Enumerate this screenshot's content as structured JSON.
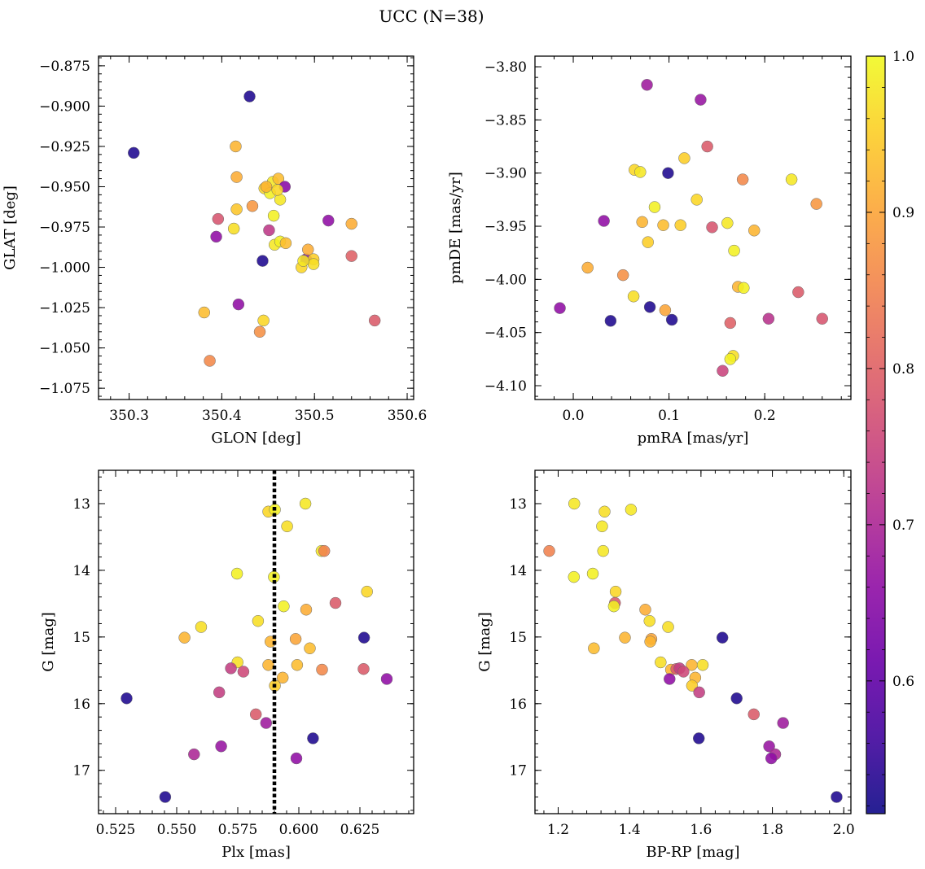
{
  "figure": {
    "title": "UCC (N=38)"
  },
  "colormap": {
    "name": "plasma",
    "range": [
      0.515,
      1.0
    ],
    "ticks": [
      0.6,
      0.7,
      0.8,
      0.9,
      1.0
    ],
    "tick_labels": [
      "0.6",
      "0.7",
      "0.8",
      "0.9",
      "1.0"
    ]
  },
  "dashed_line": {
    "value": 0.59,
    "color": "#000000",
    "style": "dotted"
  },
  "chart_data": [
    {
      "type": "scatter",
      "id": "glon-glat",
      "xlabel": "GLON [deg]",
      "ylabel": "GLAT [deg]",
      "xlim": [
        350.267,
        350.607
      ],
      "ylim": [
        -1.082,
        -0.869
      ],
      "xticks": [
        350.3,
        350.4,
        350.5,
        350.6
      ],
      "xtick_labels": [
        "350.3",
        "350.4",
        "350.5",
        "350.6"
      ],
      "yticks": [
        -0.875,
        -0.9,
        -0.925,
        -0.95,
        -0.975,
        -1.0,
        -1.025,
        -1.05,
        -1.075
      ],
      "ytick_labels": [
        "−0.875",
        "−0.900",
        "−0.925",
        "−0.950",
        "−0.975",
        "−1.000",
        "−1.025",
        "−1.050",
        "−1.075"
      ],
      "invert_y": false,
      "grid": false,
      "points": [
        {
          "x": 350.305,
          "y": -0.929,
          "c": 0.53
        },
        {
          "x": 350.43,
          "y": -0.894,
          "c": 0.53
        },
        {
          "x": 350.444,
          "y": -0.996,
          "c": 0.53
        },
        {
          "x": 350.491,
          "y": -0.995,
          "c": 0.64
        },
        {
          "x": 350.415,
          "y": -0.925,
          "c": 0.92
        },
        {
          "x": 350.416,
          "y": -0.944,
          "c": 0.91
        },
        {
          "x": 350.416,
          "y": -0.964,
          "c": 0.94
        },
        {
          "x": 350.413,
          "y": -0.976,
          "c": 0.97
        },
        {
          "x": 350.396,
          "y": -0.97,
          "c": 0.78
        },
        {
          "x": 350.394,
          "y": -0.981,
          "c": 0.66
        },
        {
          "x": 350.433,
          "y": -0.962,
          "c": 0.88
        },
        {
          "x": 350.446,
          "y": -0.951,
          "c": 0.96
        },
        {
          "x": 350.452,
          "y": -0.954,
          "c": 0.99
        },
        {
          "x": 350.455,
          "y": -0.947,
          "c": 0.98
        },
        {
          "x": 350.461,
          "y": -0.945,
          "c": 0.93
        },
        {
          "x": 350.463,
          "y": -0.958,
          "c": 0.98
        },
        {
          "x": 350.468,
          "y": -0.95,
          "c": 0.65
        },
        {
          "x": 350.456,
          "y": -0.968,
          "c": 0.99
        },
        {
          "x": 350.451,
          "y": -0.977,
          "c": 0.73
        },
        {
          "x": 350.457,
          "y": -0.986,
          "c": 0.98
        },
        {
          "x": 350.463,
          "y": -0.984,
          "c": 0.99
        },
        {
          "x": 350.469,
          "y": -0.985,
          "c": 0.93
        },
        {
          "x": 350.493,
          "y": -0.989,
          "c": 0.91
        },
        {
          "x": 350.499,
          "y": -0.995,
          "c": 0.95
        },
        {
          "x": 350.499,
          "y": -0.998,
          "c": 0.97
        },
        {
          "x": 350.486,
          "y": -1.0,
          "c": 0.96
        },
        {
          "x": 350.515,
          "y": -0.971,
          "c": 0.66
        },
        {
          "x": 350.54,
          "y": -0.973,
          "c": 0.91
        },
        {
          "x": 350.54,
          "y": -0.993,
          "c": 0.8
        },
        {
          "x": 350.565,
          "y": -1.033,
          "c": 0.79
        },
        {
          "x": 350.418,
          "y": -1.023,
          "c": 0.66
        },
        {
          "x": 350.381,
          "y": -1.028,
          "c": 0.93
        },
        {
          "x": 350.445,
          "y": -1.033,
          "c": 0.96
        },
        {
          "x": 350.441,
          "y": -1.04,
          "c": 0.87
        },
        {
          "x": 350.387,
          "y": -1.058,
          "c": 0.86
        },
        {
          "x": 350.46,
          "y": -0.952,
          "c": 0.96
        },
        {
          "x": 350.448,
          "y": -0.95,
          "c": 0.92
        },
        {
          "x": 350.488,
          "y": -0.996,
          "c": 0.98
        }
      ]
    },
    {
      "type": "scatter",
      "id": "pmra-pmde",
      "xlabel": "pmRA [mas/yr]",
      "ylabel": "pmDE [mas/yr]",
      "xlim": [
        -0.04,
        0.29
      ],
      "ylim": [
        -4.113,
        -3.79
      ],
      "xticks": [
        0.0,
        0.1,
        0.2
      ],
      "xtick_labels": [
        "0.0",
        "0.1",
        "0.2"
      ],
      "yticks": [
        -3.8,
        -3.85,
        -3.9,
        -3.95,
        -4.0,
        -4.05,
        -4.1
      ],
      "ytick_labels": [
        "−3.80",
        "−3.85",
        "−3.90",
        "−3.95",
        "−4.00",
        "−4.05",
        "−4.10"
      ],
      "invert_y": false,
      "grid": false,
      "points": [
        {
          "x": 0.077,
          "y": -3.817,
          "c": 0.68
        },
        {
          "x": 0.133,
          "y": -3.831,
          "c": 0.67
        },
        {
          "x": 0.14,
          "y": -3.875,
          "c": 0.79
        },
        {
          "x": 0.116,
          "y": -3.886,
          "c": 0.95
        },
        {
          "x": 0.064,
          "y": -3.897,
          "c": 0.96
        },
        {
          "x": 0.07,
          "y": -3.899,
          "c": 0.98
        },
        {
          "x": 0.099,
          "y": -3.9,
          "c": 0.53
        },
        {
          "x": 0.177,
          "y": -3.906,
          "c": 0.86
        },
        {
          "x": 0.228,
          "y": -3.906,
          "c": 0.98
        },
        {
          "x": 0.129,
          "y": -3.925,
          "c": 0.96
        },
        {
          "x": 0.254,
          "y": -3.929,
          "c": 0.88
        },
        {
          "x": 0.085,
          "y": -3.932,
          "c": 0.99
        },
        {
          "x": 0.032,
          "y": -3.945,
          "c": 0.66
        },
        {
          "x": 0.072,
          "y": -3.946,
          "c": 0.92
        },
        {
          "x": 0.094,
          "y": -3.949,
          "c": 0.93
        },
        {
          "x": 0.112,
          "y": -3.949,
          "c": 0.95
        },
        {
          "x": 0.161,
          "y": -3.947,
          "c": 0.98
        },
        {
          "x": 0.145,
          "y": -3.951,
          "c": 0.78
        },
        {
          "x": 0.189,
          "y": -3.954,
          "c": 0.92
        },
        {
          "x": 0.078,
          "y": -3.965,
          "c": 0.95
        },
        {
          "x": 0.168,
          "y": -3.973,
          "c": 0.99
        },
        {
          "x": 0.015,
          "y": -3.989,
          "c": 0.91
        },
        {
          "x": 0.052,
          "y": -3.996,
          "c": 0.87
        },
        {
          "x": 0.172,
          "y": -4.007,
          "c": 0.92
        },
        {
          "x": 0.178,
          "y": -4.008,
          "c": 0.99
        },
        {
          "x": 0.235,
          "y": -4.012,
          "c": 0.79
        },
        {
          "x": 0.063,
          "y": -4.016,
          "c": 0.97
        },
        {
          "x": -0.014,
          "y": -4.027,
          "c": 0.66
        },
        {
          "x": 0.08,
          "y": -4.026,
          "c": 0.53
        },
        {
          "x": 0.096,
          "y": -4.029,
          "c": 0.9
        },
        {
          "x": 0.039,
          "y": -4.039,
          "c": 0.53
        },
        {
          "x": 0.103,
          "y": -4.038,
          "c": 0.53
        },
        {
          "x": 0.204,
          "y": -4.037,
          "c": 0.72
        },
        {
          "x": 0.26,
          "y": -4.037,
          "c": 0.78
        },
        {
          "x": 0.164,
          "y": -4.041,
          "c": 0.8
        },
        {
          "x": 0.167,
          "y": -4.072,
          "c": 0.97
        },
        {
          "x": 0.164,
          "y": -4.075,
          "c": 0.99
        },
        {
          "x": 0.156,
          "y": -4.086,
          "c": 0.75
        }
      ]
    },
    {
      "type": "scatter",
      "id": "plx-g",
      "xlabel": "Plx [mas]",
      "ylabel": "G [mag]",
      "xlim": [
        0.518,
        0.647
      ],
      "ylim": [
        12.5,
        17.65
      ],
      "xticks": [
        0.525,
        0.55,
        0.575,
        0.6,
        0.625
      ],
      "xtick_labels": [
        "0.525",
        "0.550",
        "0.575",
        "0.600",
        "0.625"
      ],
      "yticks": [
        13,
        14,
        15,
        16,
        17
      ],
      "ytick_labels": [
        "13",
        "14",
        "15",
        "16",
        "17"
      ],
      "invert_y": true,
      "grid": false,
      "points": [
        {
          "x": 0.5875,
          "y": 13.12,
          "c": 0.96
        },
        {
          "x": 0.5902,
          "y": 13.09,
          "c": 0.99
        },
        {
          "x": 0.6027,
          "y": 13.0,
          "c": 0.98
        },
        {
          "x": 0.5952,
          "y": 13.34,
          "c": 0.97
        },
        {
          "x": 0.6093,
          "y": 13.71,
          "c": 0.98
        },
        {
          "x": 0.6104,
          "y": 13.71,
          "c": 0.85
        },
        {
          "x": 0.5747,
          "y": 14.05,
          "c": 0.99
        },
        {
          "x": 0.5898,
          "y": 14.1,
          "c": 0.99
        },
        {
          "x": 0.6279,
          "y": 14.32,
          "c": 0.96
        },
        {
          "x": 0.615,
          "y": 14.49,
          "c": 0.79
        },
        {
          "x": 0.5938,
          "y": 14.54,
          "c": 0.99
        },
        {
          "x": 0.603,
          "y": 14.59,
          "c": 0.91
        },
        {
          "x": 0.5833,
          "y": 14.76,
          "c": 0.97
        },
        {
          "x": 0.56,
          "y": 14.85,
          "c": 0.97
        },
        {
          "x": 0.5532,
          "y": 15.01,
          "c": 0.92
        },
        {
          "x": 0.6267,
          "y": 15.01,
          "c": 0.53
        },
        {
          "x": 0.5987,
          "y": 15.03,
          "c": 0.9
        },
        {
          "x": 0.5884,
          "y": 15.07,
          "c": 0.92
        },
        {
          "x": 0.6045,
          "y": 15.17,
          "c": 0.93
        },
        {
          "x": 0.5749,
          "y": 15.38,
          "c": 0.97
        },
        {
          "x": 0.5875,
          "y": 15.42,
          "c": 0.92
        },
        {
          "x": 0.5993,
          "y": 15.42,
          "c": 0.93
        },
        {
          "x": 0.5722,
          "y": 15.47,
          "c": 0.74
        },
        {
          "x": 0.5773,
          "y": 15.52,
          "c": 0.76
        },
        {
          "x": 0.6095,
          "y": 15.49,
          "c": 0.86
        },
        {
          "x": 0.6265,
          "y": 15.48,
          "c": 0.79
        },
        {
          "x": 0.5934,
          "y": 15.61,
          "c": 0.92
        },
        {
          "x": 0.636,
          "y": 15.63,
          "c": 0.66
        },
        {
          "x": 0.5902,
          "y": 15.73,
          "c": 0.95
        },
        {
          "x": 0.5674,
          "y": 15.83,
          "c": 0.74
        },
        {
          "x": 0.5295,
          "y": 15.92,
          "c": 0.53
        },
        {
          "x": 0.5824,
          "y": 16.16,
          "c": 0.79
        },
        {
          "x": 0.5866,
          "y": 16.29,
          "c": 0.68
        },
        {
          "x": 0.6058,
          "y": 16.52,
          "c": 0.53
        },
        {
          "x": 0.5682,
          "y": 16.64,
          "c": 0.67
        },
        {
          "x": 0.5571,
          "y": 16.76,
          "c": 0.7
        },
        {
          "x": 0.599,
          "y": 16.82,
          "c": 0.66
        },
        {
          "x": 0.5453,
          "y": 17.4,
          "c": 0.53
        }
      ]
    },
    {
      "type": "scatter",
      "id": "bprp-g",
      "xlabel": "BP-RP [mag]",
      "ylabel": "G [mag]",
      "xlim": [
        1.135,
        2.02
      ],
      "ylim": [
        12.5,
        17.65
      ],
      "xticks": [
        1.2,
        1.4,
        1.6,
        1.8,
        2.0
      ],
      "xtick_labels": [
        "1.2",
        "1.4",
        "1.6",
        "1.8",
        "2.0"
      ],
      "yticks": [
        13,
        14,
        15,
        16,
        17
      ],
      "ytick_labels": [
        "13",
        "14",
        "15",
        "16",
        "17"
      ],
      "invert_y": true,
      "grid": false,
      "points": [
        {
          "x": 1.245,
          "y": 13.0,
          "c": 0.98
        },
        {
          "x": 1.33,
          "y": 13.12,
          "c": 0.97
        },
        {
          "x": 1.404,
          "y": 13.09,
          "c": 0.98
        },
        {
          "x": 1.323,
          "y": 13.34,
          "c": 0.98
        },
        {
          "x": 1.175,
          "y": 13.71,
          "c": 0.85
        },
        {
          "x": 1.326,
          "y": 13.71,
          "c": 0.98
        },
        {
          "x": 1.244,
          "y": 14.1,
          "c": 0.99
        },
        {
          "x": 1.297,
          "y": 14.05,
          "c": 0.99
        },
        {
          "x": 1.361,
          "y": 14.32,
          "c": 0.96
        },
        {
          "x": 1.359,
          "y": 14.49,
          "c": 0.79
        },
        {
          "x": 1.356,
          "y": 14.54,
          "c": 0.99
        },
        {
          "x": 1.444,
          "y": 14.59,
          "c": 0.91
        },
        {
          "x": 1.456,
          "y": 14.76,
          "c": 0.97
        },
        {
          "x": 1.508,
          "y": 14.85,
          "c": 0.97
        },
        {
          "x": 1.387,
          "y": 15.01,
          "c": 0.92
        },
        {
          "x": 1.461,
          "y": 15.03,
          "c": 0.9
        },
        {
          "x": 1.458,
          "y": 15.07,
          "c": 0.92
        },
        {
          "x": 1.66,
          "y": 15.01,
          "c": 0.53
        },
        {
          "x": 1.3,
          "y": 15.17,
          "c": 0.93
        },
        {
          "x": 1.487,
          "y": 15.38,
          "c": 0.97
        },
        {
          "x": 1.574,
          "y": 15.42,
          "c": 0.92
        },
        {
          "x": 1.605,
          "y": 15.42,
          "c": 0.97
        },
        {
          "x": 1.516,
          "y": 15.49,
          "c": 0.92
        },
        {
          "x": 1.531,
          "y": 15.48,
          "c": 0.79
        },
        {
          "x": 1.54,
          "y": 15.47,
          "c": 0.74
        },
        {
          "x": 1.551,
          "y": 15.52,
          "c": 0.76
        },
        {
          "x": 1.584,
          "y": 15.61,
          "c": 0.92
        },
        {
          "x": 1.512,
          "y": 15.63,
          "c": 0.66
        },
        {
          "x": 1.575,
          "y": 15.73,
          "c": 0.95
        },
        {
          "x": 1.595,
          "y": 15.83,
          "c": 0.74
        },
        {
          "x": 1.7,
          "y": 15.92,
          "c": 0.53
        },
        {
          "x": 1.748,
          "y": 16.16,
          "c": 0.79
        },
        {
          "x": 1.83,
          "y": 16.29,
          "c": 0.68
        },
        {
          "x": 1.594,
          "y": 16.52,
          "c": 0.53
        },
        {
          "x": 1.791,
          "y": 16.64,
          "c": 0.67
        },
        {
          "x": 1.808,
          "y": 16.76,
          "c": 0.7
        },
        {
          "x": 1.797,
          "y": 16.82,
          "c": 0.66
        },
        {
          "x": 1.98,
          "y": 17.4,
          "c": 0.53
        }
      ]
    }
  ]
}
